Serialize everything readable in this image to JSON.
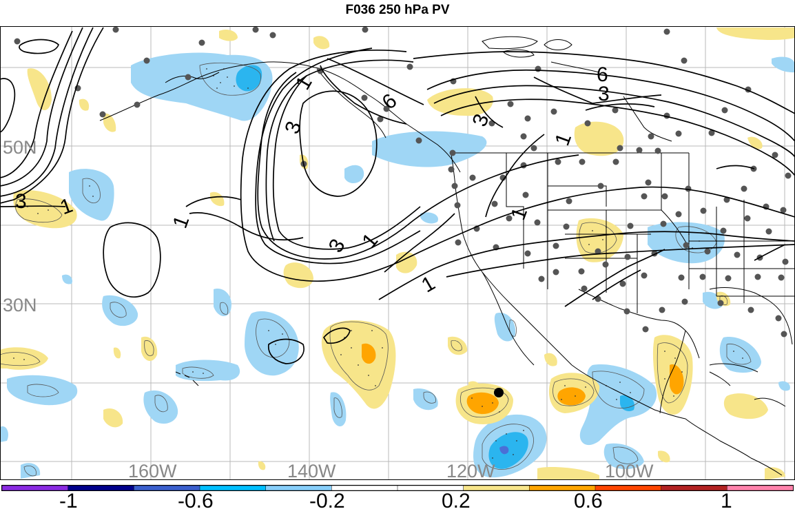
{
  "title": "F036 250 hPa PV",
  "map": {
    "longitude_labels": [
      "160W",
      "140W",
      "120W",
      "100W"
    ],
    "latitude_labels": [
      "50N",
      "30N"
    ],
    "contour_labels": [
      "3",
      "1",
      "1",
      "3",
      "1",
      "3",
      "6",
      "3",
      "1",
      "6",
      "3",
      "1",
      "1",
      "1"
    ]
  },
  "colorbar": {
    "tick_labels": [
      "-1",
      "-0.6",
      "-0.2",
      "0.2",
      "0.6",
      "1"
    ],
    "colors": [
      "#8a2be2",
      "#00008b",
      "#3a5fcd",
      "#00bfff",
      "#87cefa",
      "#ffffff",
      "#ffffff",
      "#f7e58a",
      "#ffa500",
      "#ff4500",
      "#b22222",
      "#ff82ab"
    ]
  }
}
